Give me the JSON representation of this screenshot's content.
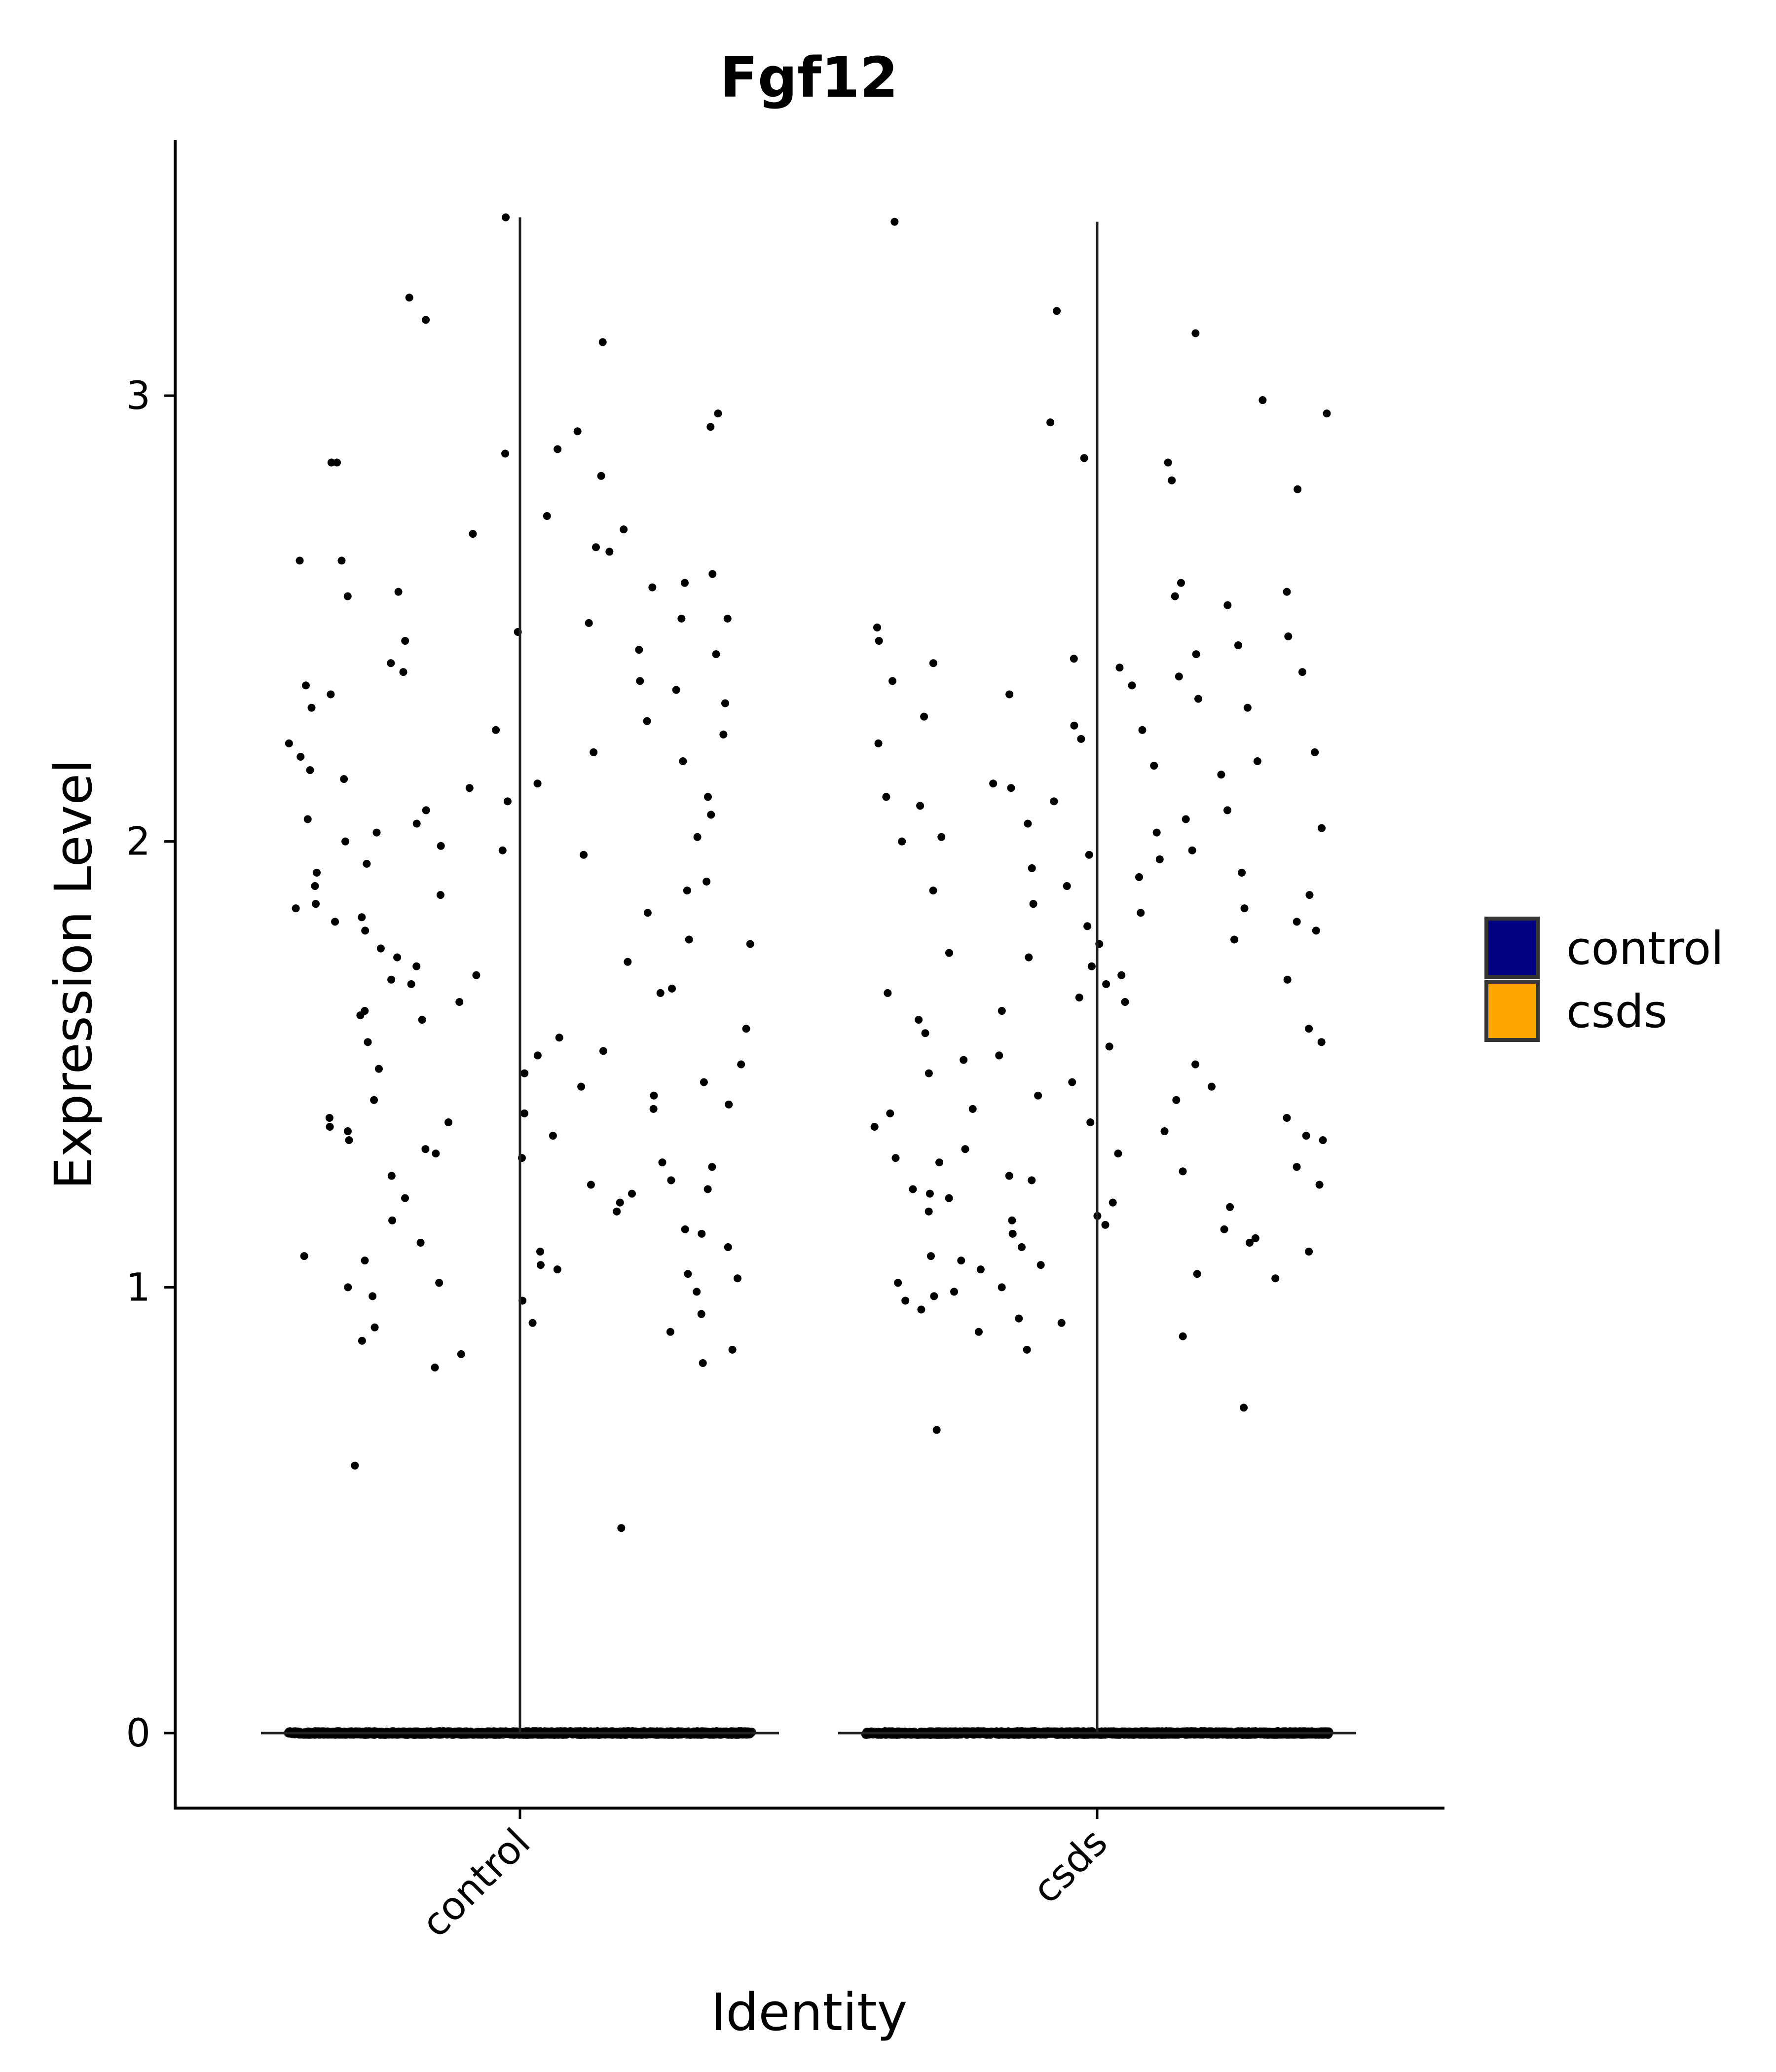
{
  "chart_data": {
    "type": "violin",
    "title": "Fgf12",
    "xlabel": "Identity",
    "ylabel": "Expression Level",
    "categories": [
      "control",
      "csds"
    ],
    "colors": {
      "control": "#000080",
      "csds": "#FFA500"
    },
    "ylim": [
      -0.17,
      3.57
    ],
    "yticks": [
      "0",
      "1",
      "2",
      "3"
    ],
    "legend": {
      "position": "right",
      "entries": [
        "control",
        "csds"
      ]
    },
    "max_expression": {
      "control": 3.4,
      "csds": 3.39
    },
    "series": [
      {
        "name": "control",
        "zero_count_approx": 1500,
        "nonzero_values": [
          3.4,
          3.22,
          3.17,
          3.12,
          2.96,
          2.93,
          2.92,
          2.88,
          2.87,
          2.85,
          2.85,
          2.82,
          2.73,
          2.7,
          2.69,
          2.66,
          2.65,
          2.63,
          2.63,
          2.6,
          2.58,
          2.57,
          2.56,
          2.55,
          2.5,
          2.5,
          2.49,
          2.47,
          2.45,
          2.43,
          2.42,
          2.4,
          2.38,
          2.36,
          2.35,
          2.34,
          2.33,
          2.31,
          2.3,
          2.27,
          2.25,
          2.24,
          2.22,
          2.2,
          2.19,
          2.18,
          2.16,
          2.14,
          2.13,
          2.12,
          2.1,
          2.09,
          2.07,
          2.06,
          2.05,
          2.04,
          2.02,
          2.01,
          2.0,
          1.99,
          1.98,
          1.97,
          1.95,
          1.93,
          1.91,
          1.9,
          1.89,
          1.88,
          1.86,
          1.85,
          1.84,
          1.83,
          1.82,
          1.8,
          1.78,
          1.77,
          1.76,
          1.74,
          1.73,
          1.72,
          1.7,
          1.69,
          1.68,
          1.67,
          1.66,
          1.64,
          1.62,
          1.61,
          1.6,
          1.58,
          1.56,
          1.55,
          1.53,
          1.52,
          1.5,
          1.49,
          1.48,
          1.46,
          1.45,
          1.43,
          1.42,
          1.41,
          1.4,
          1.39,
          1.38,
          1.37,
          1.36,
          1.35,
          1.34,
          1.33,
          1.31,
          1.3,
          1.29,
          1.28,
          1.27,
          1.25,
          1.24,
          1.23,
          1.22,
          1.21,
          1.2,
          1.19,
          1.17,
          1.15,
          1.13,
          1.12,
          1.1,
          1.09,
          1.08,
          1.07,
          1.06,
          1.05,
          1.04,
          1.03,
          1.02,
          1.01,
          1.0,
          0.99,
          0.98,
          0.97,
          0.94,
          0.92,
          0.91,
          0.9,
          0.88,
          0.86,
          0.85,
          0.83,
          0.82,
          0.6,
          0.46
        ]
      },
      {
        "name": "csds",
        "zero_count_approx": 1500,
        "nonzero_values": [
          3.39,
          3.19,
          3.14,
          2.99,
          2.96,
          2.94,
          2.86,
          2.85,
          2.81,
          2.79,
          2.58,
          2.56,
          2.55,
          2.53,
          2.48,
          2.46,
          2.45,
          2.44,
          2.42,
          2.41,
          2.4,
          2.39,
          2.38,
          2.37,
          2.36,
          2.35,
          2.33,
          2.32,
          2.3,
          2.28,
          2.26,
          2.25,
          2.23,
          2.22,
          2.2,
          2.18,
          2.17,
          2.15,
          2.13,
          2.12,
          2.1,
          2.09,
          2.08,
          2.07,
          2.05,
          2.04,
          2.03,
          2.02,
          2.01,
          2.0,
          1.98,
          1.97,
          1.96,
          1.94,
          1.93,
          1.92,
          1.9,
          1.89,
          1.88,
          1.86,
          1.85,
          1.84,
          1.82,
          1.81,
          1.8,
          1.78,
          1.77,
          1.75,
          1.74,
          1.72,
          1.7,
          1.69,
          1.68,
          1.66,
          1.65,
          1.64,
          1.62,
          1.6,
          1.58,
          1.57,
          1.55,
          1.54,
          1.52,
          1.51,
          1.5,
          1.48,
          1.46,
          1.45,
          1.43,
          1.42,
          1.4,
          1.39,
          1.38,
          1.37,
          1.36,
          1.35,
          1.34,
          1.33,
          1.31,
          1.3,
          1.29,
          1.28,
          1.27,
          1.26,
          1.25,
          1.24,
          1.23,
          1.22,
          1.21,
          1.2,
          1.19,
          1.18,
          1.17,
          1.16,
          1.15,
          1.14,
          1.13,
          1.12,
          1.11,
          1.1,
          1.09,
          1.08,
          1.07,
          1.06,
          1.05,
          1.04,
          1.03,
          1.02,
          1.01,
          1.0,
          0.99,
          0.98,
          0.97,
          0.95,
          0.93,
          0.92,
          0.9,
          0.89,
          0.86,
          0.73,
          0.68
        ]
      }
    ]
  }
}
